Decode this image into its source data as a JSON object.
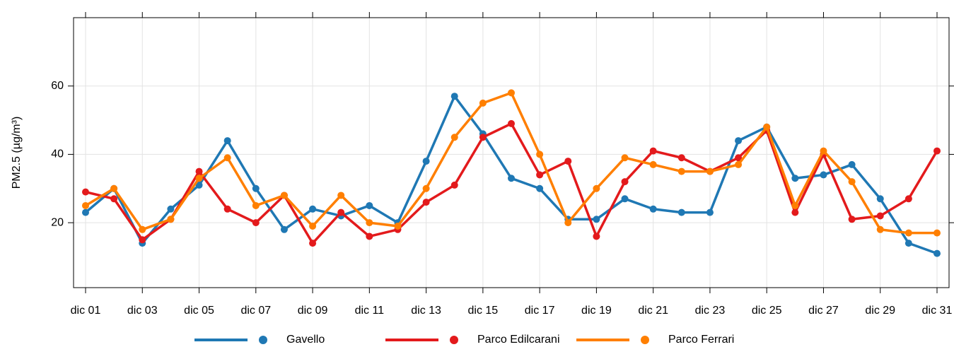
{
  "chart_data": {
    "type": "line",
    "y_label": "PM2.5 (µg/m³)",
    "categories": [
      "dic 01",
      null,
      "dic 03",
      null,
      "dic 05",
      null,
      "dic 07",
      null,
      "dic 09",
      null,
      "dic 11",
      null,
      "dic 13",
      null,
      "dic 15",
      null,
      "dic 17",
      null,
      "dic 19",
      null,
      "dic 21",
      null,
      "dic 23",
      null,
      "dic 25",
      null,
      "dic 27",
      null,
      "dic 29",
      null,
      "dic 31"
    ],
    "series": [
      {
        "name": "Gavello",
        "color": "#1f78b4",
        "values": [
          23,
          30,
          14,
          24,
          31,
          44,
          30,
          18,
          24,
          22,
          25,
          20,
          38,
          57,
          46,
          33,
          30,
          21,
          21,
          27,
          24,
          23,
          23,
          44,
          48,
          33,
          34,
          37,
          27,
          14,
          11
        ]
      },
      {
        "name": "Parco Edilcarani",
        "color": "#e31a1c",
        "values": [
          29,
          27,
          15,
          21,
          35,
          24,
          20,
          28,
          14,
          23,
          16,
          18,
          26,
          31,
          45,
          49,
          34,
          38,
          16,
          32,
          41,
          39,
          35,
          39,
          47,
          23,
          40,
          21,
          22,
          27,
          41
        ]
      },
      {
        "name": "Parco Ferrari",
        "color": "#ff7f00",
        "values": [
          25,
          30,
          18,
          21,
          33,
          39,
          25,
          28,
          19,
          28,
          20,
          19,
          30,
          45,
          55,
          58,
          40,
          20,
          30,
          39,
          37,
          35,
          35,
          37,
          48,
          25,
          41,
          32,
          18,
          17,
          17
        ]
      }
    ],
    "ylim": [
      1,
      80
    ],
    "yticks": [
      20,
      40,
      60
    ],
    "grid": true,
    "legend": "bottom"
  }
}
